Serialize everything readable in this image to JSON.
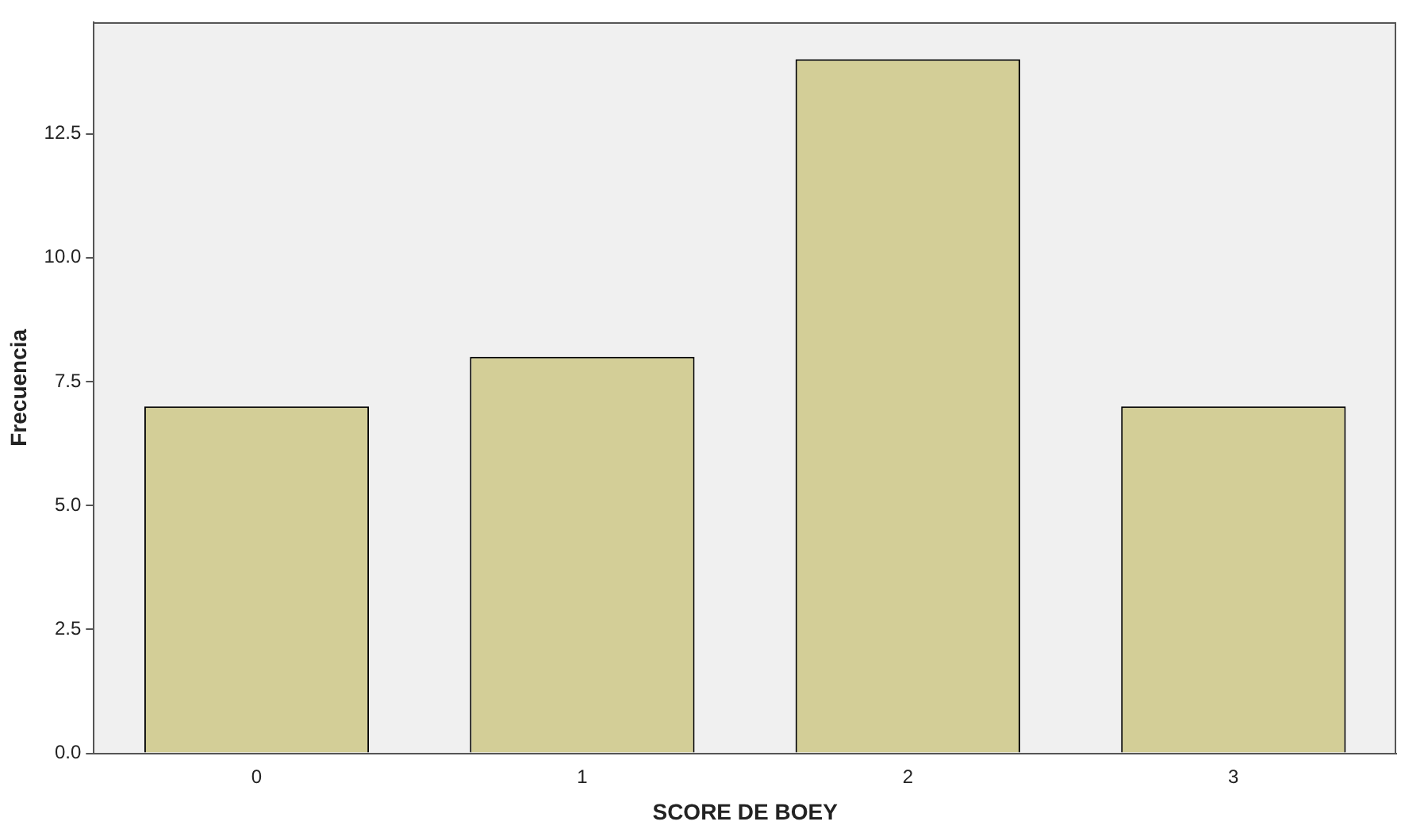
{
  "chart_data": {
    "type": "bar",
    "xlabel": "SCORE DE BOEY",
    "ylabel": "Frecuencia",
    "categories": [
      "0",
      "1",
      "2",
      "3"
    ],
    "values": [
      7,
      8,
      14,
      7
    ],
    "color": "#d3ce97",
    "ylim": [
      0,
      14.75
    ],
    "yticks": [
      {
        "value": 0,
        "label": "0.0"
      },
      2.5,
      {
        "value": 5,
        "label": "5.0"
      },
      7.5,
      {
        "value": 10,
        "label": "10.0"
      },
      12.5
    ],
    "grid": false,
    "legend": false
  }
}
